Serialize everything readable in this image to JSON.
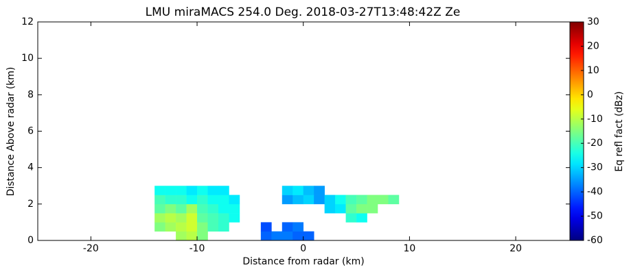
{
  "chart_data": {
    "type": "heatmap",
    "title": "LMU miraMACS 254.0 Deg. 2018-03-27T13:48:42Z  Ze",
    "x_label": "Distance from radar (km)",
    "y_label": "Distance Above radar  (km)",
    "colorbar_label": "Eq refl fact (dBz)",
    "colormap": "jet",
    "xlim": [
      -25,
      25.1
    ],
    "ylim": [
      0,
      12
    ],
    "xticks": [
      -20,
      -10,
      0,
      10,
      20
    ],
    "yticks": [
      0,
      2,
      4,
      6,
      8,
      10,
      12
    ],
    "clim": [
      -60,
      30
    ],
    "cticks": [
      -60,
      -50,
      -40,
      -30,
      -20,
      -10,
      0,
      10,
      20,
      30
    ],
    "x_edges": [
      -14,
      -13,
      -12,
      -11,
      -10,
      -9,
      -8,
      -7,
      -6,
      -5,
      -4,
      -3,
      -2,
      -1,
      0,
      1,
      2,
      3,
      4,
      5,
      6,
      7,
      8,
      9,
      10
    ],
    "y_edges": [
      0,
      0.5,
      1,
      1.5,
      2,
      2.5,
      3
    ],
    "values": [
      [
        null,
        null,
        -12,
        -10,
        -15,
        null,
        null,
        null,
        null,
        null,
        -40,
        -38,
        -38,
        -40,
        -40,
        null,
        null,
        null,
        null,
        null,
        null,
        null,
        null,
        null
      ],
      [
        -15,
        -12,
        -10,
        -8,
        -15,
        -20,
        -22,
        null,
        null,
        null,
        -42,
        null,
        -40,
        -38,
        null,
        null,
        null,
        null,
        null,
        null,
        null,
        null,
        null,
        null
      ],
      [
        -12,
        -10,
        -12,
        -8,
        -18,
        -20,
        -22,
        -25,
        null,
        null,
        null,
        null,
        null,
        null,
        null,
        null,
        null,
        null,
        -22,
        -25,
        null,
        null,
        null,
        null
      ],
      [
        -18,
        -15,
        -18,
        -12,
        -20,
        -22,
        -25,
        -25,
        null,
        null,
        null,
        null,
        null,
        null,
        null,
        null,
        -30,
        -28,
        -18,
        -15,
        -15,
        null,
        null,
        null
      ],
      [
        -20,
        -22,
        -22,
        -25,
        -22,
        -25,
        -25,
        -28,
        null,
        null,
        null,
        null,
        -35,
        -32,
        -30,
        -35,
        -30,
        -25,
        -20,
        -18,
        -15,
        -15,
        -18,
        null
      ],
      [
        -25,
        -25,
        -25,
        -28,
        -25,
        -28,
        -28,
        null,
        null,
        null,
        null,
        null,
        -30,
        -28,
        -32,
        -35,
        null,
        null,
        null,
        null,
        null,
        null,
        null,
        null
      ]
    ]
  }
}
